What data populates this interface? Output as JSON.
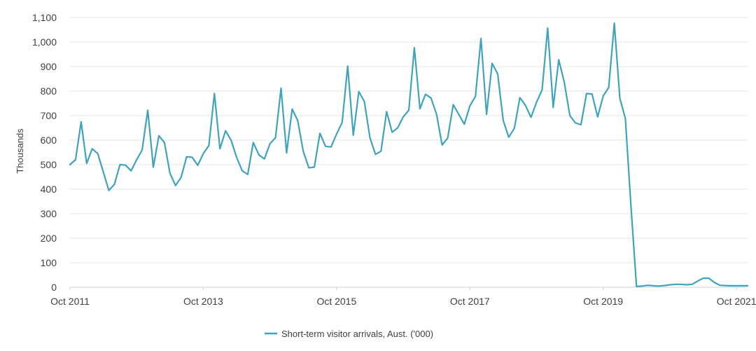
{
  "chart_data": {
    "type": "line",
    "title": "",
    "xlabel": "",
    "ylabel": "Thousands",
    "ylim": [
      0,
      1100
    ],
    "yticks": [
      0,
      100,
      200,
      300,
      400,
      500,
      600,
      700,
      800,
      900,
      1000,
      1100
    ],
    "ytick_labels": [
      "0",
      "100",
      "200",
      "300",
      "400",
      "500",
      "600",
      "700",
      "800",
      "900",
      "1,000",
      "1,100"
    ],
    "xlim": [
      "2011-10",
      "2021-12"
    ],
    "xticks": [
      "2011-10",
      "2013-10",
      "2015-10",
      "2017-10",
      "2019-10",
      "2021-10"
    ],
    "xtick_labels": [
      "Oct 2011",
      "Oct 2013",
      "Oct 2015",
      "Oct 2017",
      "Oct 2019",
      "Oct 2021"
    ],
    "grid": "horizontal",
    "legend_position": "bottom-center",
    "series": [
      {
        "name": "Short-term visitor arrivals, Aust. ('000)",
        "color": "#3ea3bd",
        "x": [
          "2011-10",
          "2011-11",
          "2011-12",
          "2012-01",
          "2012-02",
          "2012-03",
          "2012-04",
          "2012-05",
          "2012-06",
          "2012-07",
          "2012-08",
          "2012-09",
          "2012-10",
          "2012-11",
          "2012-12",
          "2013-01",
          "2013-02",
          "2013-03",
          "2013-04",
          "2013-05",
          "2013-06",
          "2013-07",
          "2013-08",
          "2013-09",
          "2013-10",
          "2013-11",
          "2013-12",
          "2014-01",
          "2014-02",
          "2014-03",
          "2014-04",
          "2014-05",
          "2014-06",
          "2014-07",
          "2014-08",
          "2014-09",
          "2014-10",
          "2014-11",
          "2014-12",
          "2015-01",
          "2015-02",
          "2015-03",
          "2015-04",
          "2015-05",
          "2015-06",
          "2015-07",
          "2015-08",
          "2015-09",
          "2015-10",
          "2015-11",
          "2015-12",
          "2016-01",
          "2016-02",
          "2016-03",
          "2016-04",
          "2016-05",
          "2016-06",
          "2016-07",
          "2016-08",
          "2016-09",
          "2016-10",
          "2016-11",
          "2016-12",
          "2017-01",
          "2017-02",
          "2017-03",
          "2017-04",
          "2017-05",
          "2017-06",
          "2017-07",
          "2017-08",
          "2017-09",
          "2017-10",
          "2017-11",
          "2017-12",
          "2018-01",
          "2018-02",
          "2018-03",
          "2018-04",
          "2018-05",
          "2018-06",
          "2018-07",
          "2018-08",
          "2018-09",
          "2018-10",
          "2018-11",
          "2018-12",
          "2019-01",
          "2019-02",
          "2019-03",
          "2019-04",
          "2019-05",
          "2019-06",
          "2019-07",
          "2019-08",
          "2019-09",
          "2019-10",
          "2019-11",
          "2019-12",
          "2020-01",
          "2020-02",
          "2020-03",
          "2020-04",
          "2020-05",
          "2020-06",
          "2020-07",
          "2020-08",
          "2020-09",
          "2020-10",
          "2020-11",
          "2020-12",
          "2021-01",
          "2021-02",
          "2021-03",
          "2021-04",
          "2021-05",
          "2021-06",
          "2021-07",
          "2021-08",
          "2021-09",
          "2021-10",
          "2021-11",
          "2021-12"
        ],
        "values": [
          500,
          520,
          675,
          505,
          565,
          545,
          470,
          395,
          420,
          500,
          498,
          475,
          520,
          560,
          722,
          490,
          618,
          590,
          465,
          415,
          448,
          532,
          530,
          497,
          545,
          578,
          790,
          565,
          638,
          600,
          530,
          475,
          460,
          590,
          540,
          523,
          585,
          610,
          812,
          548,
          727,
          680,
          555,
          487,
          490,
          628,
          575,
          572,
          625,
          672,
          902,
          620,
          798,
          757,
          610,
          542,
          555,
          716,
          632,
          650,
          695,
          722,
          977,
          728,
          787,
          772,
          705,
          580,
          608,
          745,
          705,
          665,
          740,
          778,
          1015,
          705,
          913,
          870,
          680,
          612,
          648,
          773,
          742,
          693,
          755,
          805,
          1057,
          733,
          928,
          835,
          700,
          670,
          663,
          790,
          788,
          695,
          780,
          815,
          1077,
          770,
          688,
          330,
          3,
          5,
          8,
          6,
          5,
          7,
          10,
          12,
          12,
          10,
          12,
          25,
          37,
          37,
          20,
          8,
          7,
          6,
          6,
          6,
          6
        ]
      }
    ]
  }
}
